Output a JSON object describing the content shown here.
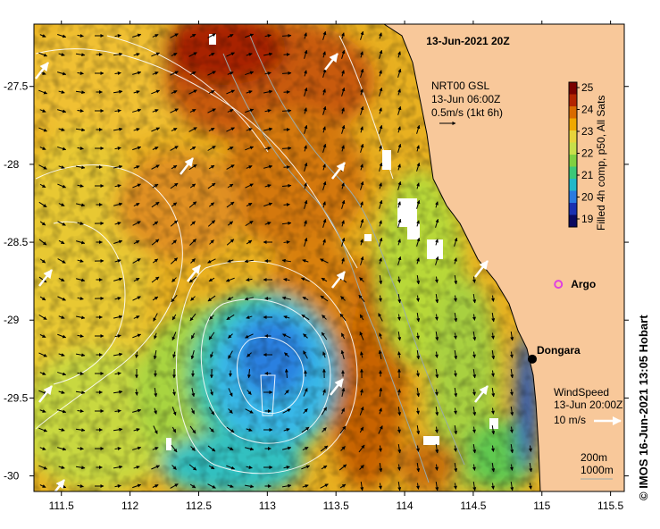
{
  "title": "13-Jun-2021 20Z",
  "current_legend": {
    "line1": "NRT00 GSL",
    "line2": "13-Jun 06:00Z",
    "line3": "0.5m/s (1kt 6h)"
  },
  "wind_legend": {
    "line1": "WindSpeed",
    "line2": "13-Jun 20:00Z",
    "line3": "10 m/s"
  },
  "depth_legend": [
    "200m",
    "1000m"
  ],
  "colorbar": {
    "label": "Filled 4h comp, p50, All Sats",
    "ticks": [
      "25",
      "24",
      "23",
      "22",
      "21",
      "20",
      "19"
    ],
    "colors": [
      "#7a0000",
      "#b32400",
      "#d96b00",
      "#f0a800",
      "#e8d43a",
      "#c8e04a",
      "#80d040",
      "#3cc878",
      "#22b8c8",
      "#2a7ae0",
      "#1a30b0",
      "#0a0a60"
    ]
  },
  "places": [
    {
      "name": "Dongara",
      "lon": 114.93,
      "lat": -29.25
    },
    {
      "name": "Argo",
      "lon": 115.12,
      "lat": -28.77
    }
  ],
  "axes": {
    "xticks": [
      "111.5",
      "112",
      "112.5",
      "113",
      "113.5",
      "114",
      "114.5",
      "115",
      "115.5"
    ],
    "yticks": [
      "-27.5",
      "-28",
      "-28.5",
      "-29",
      "-29.5",
      "-30"
    ],
    "xrange": [
      111.3,
      115.6
    ],
    "yrange": [
      -30.1,
      -27.1
    ]
  },
  "credit": "© IMOS 16-Jun-2021 13:05 Hobart",
  "colors": {
    "land": "#f8c89a",
    "argo": "#e040e0",
    "eddy_core": "#38b8e8",
    "warm_band": "#c86400"
  }
}
